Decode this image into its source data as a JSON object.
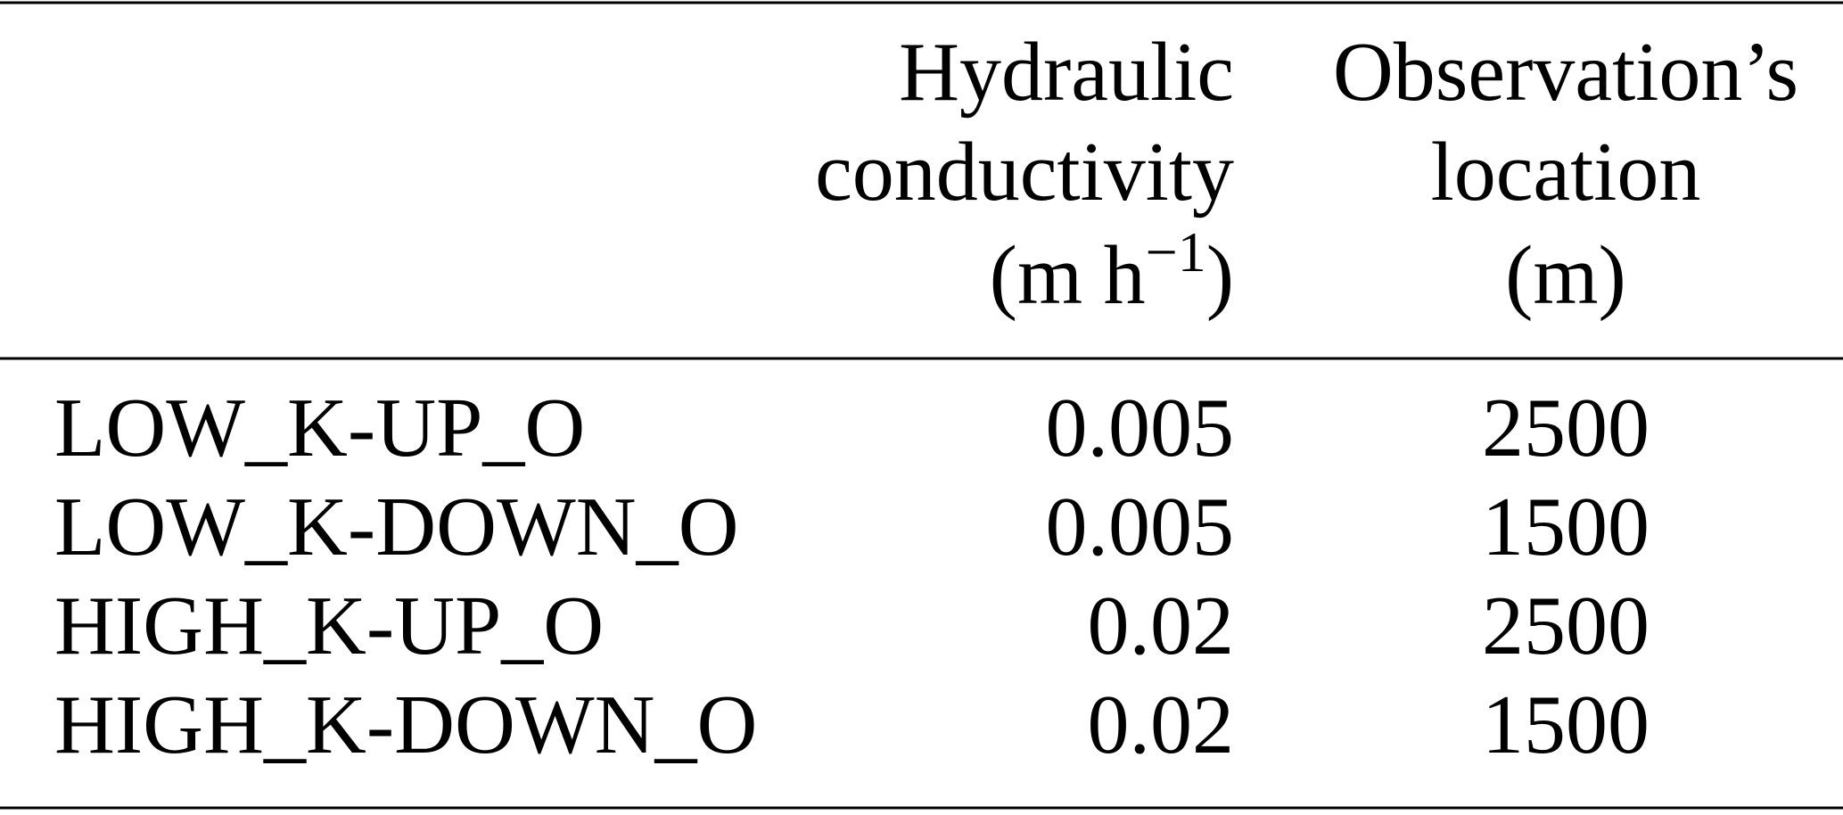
{
  "table": {
    "header": [
      {
        "lines": []
      },
      {
        "lines": [
          "Hydraulic",
          "conductivity"
        ],
        "unit_parts": [
          "(m h",
          "−1",
          ")"
        ]
      },
      {
        "lines": [
          "Observation’s",
          "location",
          "(m)"
        ]
      }
    ],
    "rows": [
      [
        "LOW_K-UP_O",
        "0.005",
        "2500"
      ],
      [
        "LOW_K-DOWN_O",
        "0.005",
        "1500"
      ],
      [
        "HIGH_K-UP_O",
        "0.02",
        "2500"
      ],
      [
        "HIGH_K-DOWN_O",
        "0.02",
        "1500"
      ]
    ]
  }
}
